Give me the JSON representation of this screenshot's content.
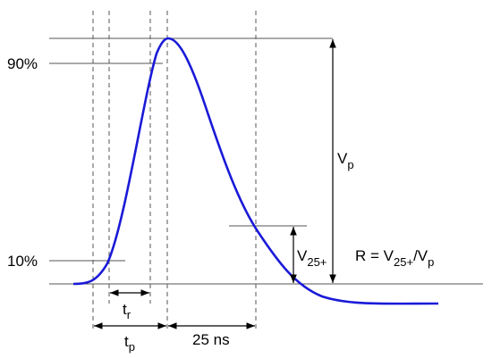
{
  "labels": {
    "level_90": "90%",
    "level_10": "10%",
    "rise_time": {
      "base": "t",
      "sub": "r"
    },
    "peak_time": {
      "base": "t",
      "sub": "p"
    },
    "delay": "25 ns",
    "peak_amplitude": {
      "base": "V",
      "sub": "p"
    },
    "amplitude_25": {
      "base": "V",
      "sub": "25+"
    },
    "ratio": {
      "lhs": "R = V",
      "sub1": "25+",
      "mid": "/V",
      "sub2": "p"
    }
  }
}
